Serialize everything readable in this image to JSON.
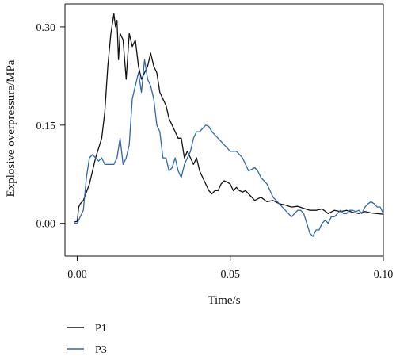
{
  "chart_data": {
    "type": "line",
    "xlabel": "Time/s",
    "ylabel": "Explosive overpressure/MPa",
    "xlim": [
      -0.004,
      0.1
    ],
    "ylim": [
      -0.05,
      0.335
    ],
    "xticks": [
      0.0,
      0.05,
      0.1
    ],
    "xtick_labels": [
      "0.00",
      "0.05",
      "0.10"
    ],
    "yticks": [
      0.0,
      0.15,
      0.3
    ],
    "ytick_labels": [
      "0.00",
      "0.15",
      "0.30"
    ],
    "grid": false,
    "legend_position": "bottom-left",
    "series": [
      {
        "name": "P1",
        "color": "#111111",
        "x": [
          -0.001,
          0.0,
          0.0005,
          0.001,
          0.002,
          0.004,
          0.006,
          0.008,
          0.009,
          0.01,
          0.011,
          0.012,
          0.0125,
          0.013,
          0.0135,
          0.014,
          0.015,
          0.016,
          0.017,
          0.018,
          0.019,
          0.02,
          0.021,
          0.022,
          0.023,
          0.024,
          0.025,
          0.026,
          0.027,
          0.028,
          0.029,
          0.03,
          0.031,
          0.032,
          0.033,
          0.034,
          0.035,
          0.036,
          0.037,
          0.038,
          0.039,
          0.04,
          0.041,
          0.042,
          0.043,
          0.044,
          0.045,
          0.046,
          0.047,
          0.048,
          0.049,
          0.05,
          0.051,
          0.052,
          0.053,
          0.054,
          0.055,
          0.056,
          0.058,
          0.06,
          0.062,
          0.064,
          0.066,
          0.068,
          0.07,
          0.072,
          0.074,
          0.076,
          0.078,
          0.08,
          0.082,
          0.084,
          0.086,
          0.088,
          0.09,
          0.092,
          0.094,
          0.096,
          0.098,
          0.1
        ],
        "values": [
          0.002,
          0.003,
          0.025,
          0.03,
          0.035,
          0.06,
          0.1,
          0.13,
          0.17,
          0.24,
          0.29,
          0.32,
          0.3,
          0.31,
          0.25,
          0.29,
          0.28,
          0.22,
          0.29,
          0.27,
          0.28,
          0.24,
          0.22,
          0.23,
          0.24,
          0.26,
          0.24,
          0.23,
          0.2,
          0.19,
          0.18,
          0.16,
          0.15,
          0.14,
          0.13,
          0.13,
          0.1,
          0.11,
          0.1,
          0.09,
          0.1,
          0.08,
          0.07,
          0.06,
          0.05,
          0.045,
          0.05,
          0.05,
          0.06,
          0.065,
          0.063,
          0.06,
          0.05,
          0.055,
          0.05,
          0.048,
          0.05,
          0.045,
          0.035,
          0.04,
          0.033,
          0.035,
          0.03,
          0.028,
          0.025,
          0.026,
          0.023,
          0.02,
          0.02,
          0.022,
          0.015,
          0.02,
          0.018,
          0.02,
          0.017,
          0.015,
          0.018,
          0.016,
          0.015,
          0.014
        ]
      },
      {
        "name": "P3",
        "color": "#2f67b1",
        "x": [
          -0.001,
          0.0,
          0.001,
          0.002,
          0.003,
          0.004,
          0.005,
          0.006,
          0.007,
          0.008,
          0.009,
          0.01,
          0.011,
          0.012,
          0.013,
          0.014,
          0.015,
          0.016,
          0.017,
          0.018,
          0.019,
          0.02,
          0.021,
          0.022,
          0.023,
          0.024,
          0.025,
          0.026,
          0.027,
          0.028,
          0.029,
          0.03,
          0.031,
          0.032,
          0.033,
          0.034,
          0.035,
          0.036,
          0.037,
          0.038,
          0.039,
          0.04,
          0.041,
          0.042,
          0.043,
          0.044,
          0.045,
          0.046,
          0.048,
          0.05,
          0.052,
          0.054,
          0.056,
          0.058,
          0.059,
          0.06,
          0.061,
          0.062,
          0.063,
          0.064,
          0.065,
          0.066,
          0.067,
          0.068,
          0.069,
          0.07,
          0.071,
          0.072,
          0.073,
          0.074,
          0.075,
          0.076,
          0.077,
          0.078,
          0.079,
          0.08,
          0.081,
          0.082,
          0.083,
          0.084,
          0.085,
          0.086,
          0.087,
          0.088,
          0.089,
          0.09,
          0.091,
          0.092,
          0.093,
          0.094,
          0.095,
          0.096,
          0.097,
          0.098,
          0.099,
          0.1
        ],
        "values": [
          0.0,
          0.0,
          0.01,
          0.02,
          0.07,
          0.1,
          0.105,
          0.1,
          0.095,
          0.1,
          0.09,
          0.09,
          0.09,
          0.09,
          0.1,
          0.13,
          0.09,
          0.1,
          0.12,
          0.19,
          0.21,
          0.23,
          0.2,
          0.25,
          0.22,
          0.21,
          0.19,
          0.15,
          0.14,
          0.1,
          0.1,
          0.08,
          0.085,
          0.1,
          0.08,
          0.07,
          0.09,
          0.1,
          0.11,
          0.13,
          0.14,
          0.14,
          0.145,
          0.15,
          0.148,
          0.14,
          0.135,
          0.13,
          0.12,
          0.11,
          0.11,
          0.1,
          0.08,
          0.085,
          0.08,
          0.07,
          0.065,
          0.06,
          0.05,
          0.04,
          0.035,
          0.03,
          0.025,
          0.02,
          0.015,
          0.01,
          0.015,
          0.02,
          0.02,
          0.015,
          0.0,
          -0.015,
          -0.02,
          -0.01,
          -0.01,
          0.0,
          0.005,
          0.0,
          0.01,
          0.01,
          0.015,
          0.02,
          0.015,
          0.015,
          0.02,
          0.02,
          0.018,
          0.02,
          0.015,
          0.025,
          0.03,
          0.033,
          0.03,
          0.025,
          0.025,
          0.015
        ]
      }
    ]
  }
}
